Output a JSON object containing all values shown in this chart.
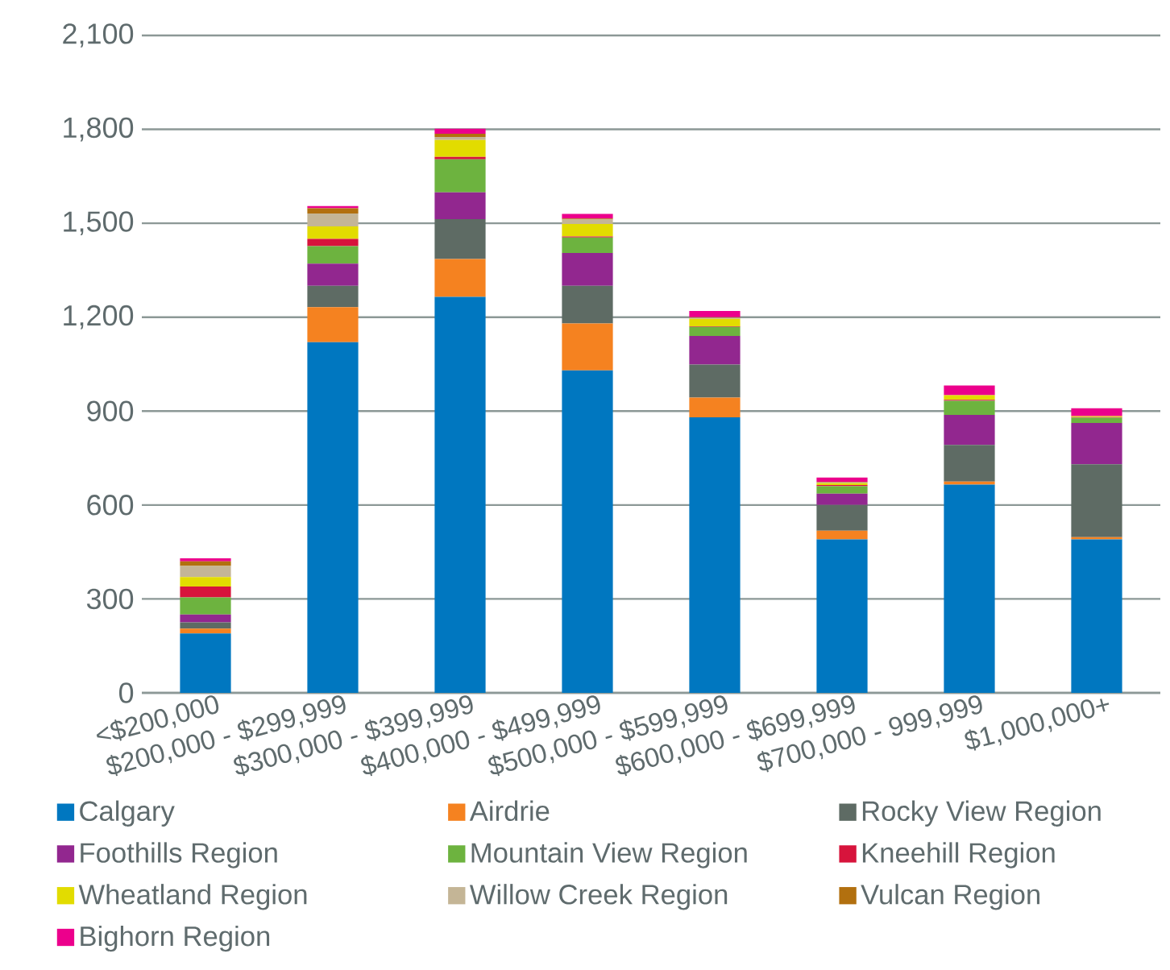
{
  "chart_data": {
    "type": "bar",
    "stacked": true,
    "grid": "y",
    "legend": "bottom",
    "categories": [
      "<$200,000",
      "$200,000 - $299,999",
      "$300,000 - $399,999",
      "$400,000 - $499,999",
      "$500,000 - $599,999",
      "$600,000 - $699,999",
      "$700,000 - 999,999",
      "$1,000,000+"
    ],
    "ylim": [
      0,
      2100
    ],
    "yticks": [
      0,
      300,
      600,
      900,
      {
        "value": 1200,
        "label": "1,200"
      },
      {
        "value": 1500,
        "label": "1,500"
      },
      {
        "value": 1800,
        "label": "1,800"
      },
      {
        "value": 2100,
        "label": "2,100"
      }
    ],
    "series": [
      {
        "name": "Calgary",
        "color": "#0077c0",
        "values": [
          190,
          1120,
          1265,
          1030,
          880,
          490,
          665,
          490
        ]
      },
      {
        "name": "Airdrie",
        "color": "#f58220",
        "values": [
          15,
          112,
          121,
          150,
          63,
          28,
          10,
          7
        ]
      },
      {
        "name": "Rocky View Region",
        "color": "#5e6b64",
        "values": [
          20,
          68,
          127,
          120,
          106,
          82,
          117,
          233
        ]
      },
      {
        "name": "Foothills Region",
        "color": "#92278f",
        "values": [
          25,
          71,
          86,
          105,
          91,
          36,
          96,
          132
        ]
      },
      {
        "name": "Mountain View Region",
        "color": "#6db33f",
        "values": [
          55,
          56,
          105,
          50,
          29,
          24,
          45,
          17
        ]
      },
      {
        "name": "Kneehill Region",
        "color": "#d7143c",
        "values": [
          35,
          23,
          8,
          3,
          2,
          4,
          3,
          2
        ]
      },
      {
        "name": "Wheatland Region",
        "color": "#e2dc00",
        "values": [
          30,
          40,
          54,
          40,
          24,
          6,
          15,
          3
        ]
      },
      {
        "name": "Willow Creek Region",
        "color": "#c4b596",
        "values": [
          35,
          41,
          10,
          14,
          3,
          2,
          0,
          0
        ]
      },
      {
        "name": "Vulcan Region",
        "color": "#b2700f",
        "values": [
          15,
          17,
          10,
          3,
          2,
          2,
          0,
          0
        ]
      },
      {
        "name": "Bighorn Region",
        "color": "#ec008c",
        "values": [
          10,
          7,
          16,
          15,
          20,
          14,
          31,
          25
        ]
      }
    ]
  }
}
